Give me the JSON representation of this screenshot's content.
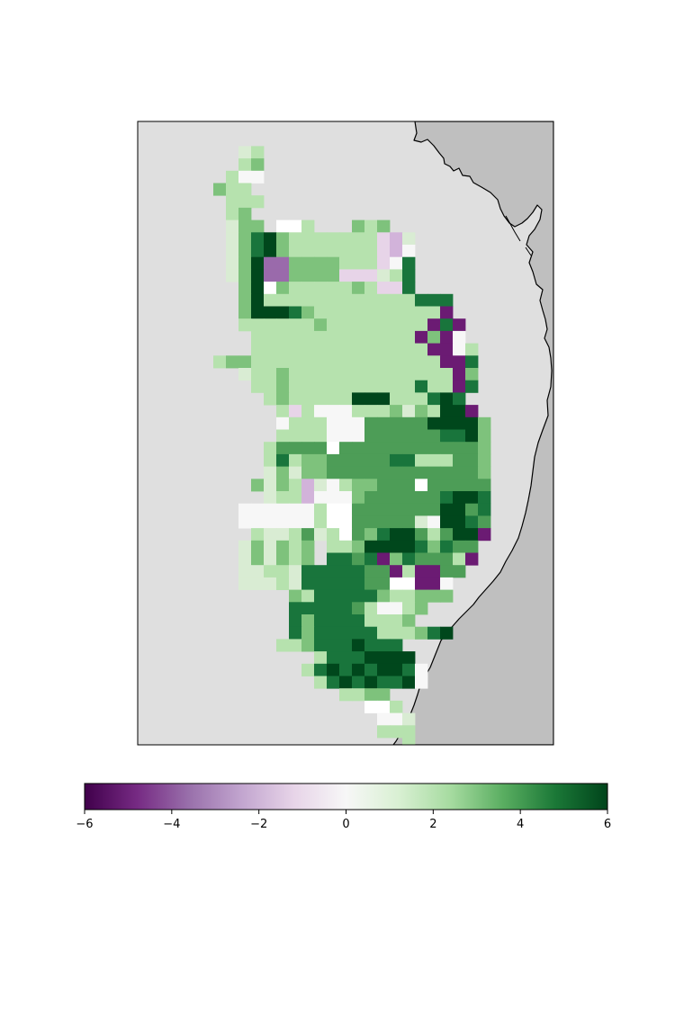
{
  "map": {
    "type": "heatmap",
    "colormap": "PRGn",
    "ocean_color": "#dfdfdf",
    "land_color": "#bfbfbf",
    "coastline_color": "#000000",
    "cell_colors": {
      "a": "#ffffff",
      "b": "#f7f7f7",
      "c": "#b6e2ae",
      "d": "#7ec27c",
      "e": "#4d9d57",
      "f": "#19753c",
      "g": "#00471c",
      "h": "#d9ecd3",
      "i": "#e7d4e8",
      "j": "#d2b3da",
      "k": "#9a6aab",
      "l": "#6b1b73"
    },
    "grid_rows": [
      "...............................",
      "...............................",
      "........hc.....................",
      "........cd.....................",
      ".......cbb.....................",
      "......dcc......................",
      ".......ccc.....................",
      ".......cd......................",
      ".......hdd.aac...dcd...........",
      ".......hdfgdcccccccijh.........",
      ".......hdfgdcccccccijb.........",
      ".......hdgkkddddcccibf.........",
      ".......hdgkkddddiiihcf.........",
      "........dgadcccccdciif.........",
      "........dgccccccccccccfff......",
      "........dgggfdccccccccccl......",
      "........ccccccdcccccccclfl.....",
      ".........cccccccccccccldlb.....",
      ".........ccccccccccccccllbc....",
      "......cddcccccccccccccccllf....",
      "........hccdcccccccccccccld....",
      ".........ccdccccccccccfcclf....",
      "..........cdcccccgggcccfgf.....",
      "...........cicbbbcccdhdcggl....",
      "...........bcccbbbeeeeeggggd...",
      "...........ccccbbbeeeeeeffgd...",
      "..........ceeeeaeeeeeeeeeeed...",
      "..........cfcddeeeeeffccceed...",
      "..........hdhddeeeeeeeeeeeed...",
      ".........dhdcjhbcddeeeaeeeee...",
      "..........hccjbbbdeeeeeefggf...",
      "........bbbbbbcaaeeeeeeeggef...",
      "........bbbbbbcaaeeeeehbggfe...",
      ".........chhcehcaedfggeceggl...",
      "........hdhdcd.ccdggggfdfee....",
      "........hdhdcd.ffefldfeeecl....",
      "........hhcchfffffeelcllee.....",
      "........hhhchfffffeeaallb......",
      "............dcfffffdccddd......",
      "............fffffecbbcd........",
      "............fdffffcccd.........",
      "............fdfffffcccdfg......",
      "...........ccdfffgfff..........",
      "..............cfffgggg.........",
      ".............cfgfgfggfb........",
      "..............cfgfgffgb........",
      "................ccdd...........",
      "..................aac..........",
      "...................bbh.........",
      "...................ccc.........",
      ".....................c.........",
      "...............................",
      "..............................."
    ]
  },
  "colorbar": {
    "vmin": -6,
    "vmax": 6,
    "ticks": [
      "−6",
      "−4",
      "−2",
      "0",
      "2",
      "4",
      "6"
    ],
    "tick_values": [
      -6,
      -4,
      -2,
      0,
      2,
      4,
      6
    ],
    "stops": [
      "#40004b",
      "#762a83",
      "#9970ab",
      "#c2a5cf",
      "#e7d4e8",
      "#f7f7f7",
      "#d9f0d3",
      "#a6dba0",
      "#5aae61",
      "#1b7837",
      "#00441b"
    ]
  }
}
